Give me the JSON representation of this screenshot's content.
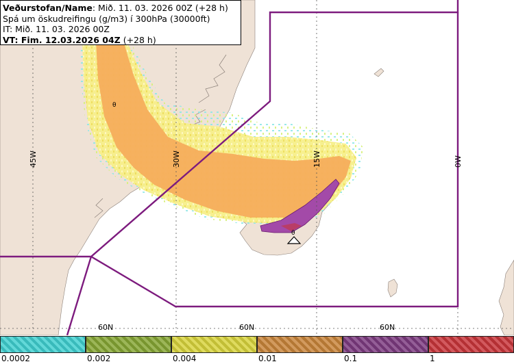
{
  "header": {
    "line1_label": "Veðurstofan/Name",
    "line1_value": ": Mið. 11. 03. 2026 00Z (+28 h)",
    "line2": "Spá um öskudreifingu (g/m3) í 300hPa (30000ft)",
    "line3": "IT: Mið. 11. 03. 2026 00Z",
    "line4": "VT: Fim. 12.03.2026 04Z",
    "line4_suffix": " (+28 h)"
  },
  "map": {
    "meridian_labels": [
      "45W",
      "30W",
      "15W",
      "0W"
    ],
    "parallel_labels": [
      "60N",
      "60N",
      "60N"
    ],
    "source_symbol": "θ",
    "colors": {
      "ocean": "#ffffff",
      "land": "#efe2d6",
      "boundary": "#7d1b7e",
      "ash_orange": "#f5ad5c",
      "ash_yellow": "#f4ea6a",
      "ash_cyan": "#8ee7e7",
      "ash_purple": "#a34aa8"
    }
  },
  "legend": {
    "bins": [
      {
        "color": "#3fcfd0",
        "label": "0.0002"
      },
      {
        "color": "#86a634",
        "label": "0.002"
      },
      {
        "color": "#d8d33c",
        "label": "0.004"
      },
      {
        "color": "#c8843a",
        "label": "0.01"
      },
      {
        "color": "#7d3b80",
        "label": "0.1"
      },
      {
        "color": "#c8353a",
        "label": "1"
      }
    ]
  }
}
